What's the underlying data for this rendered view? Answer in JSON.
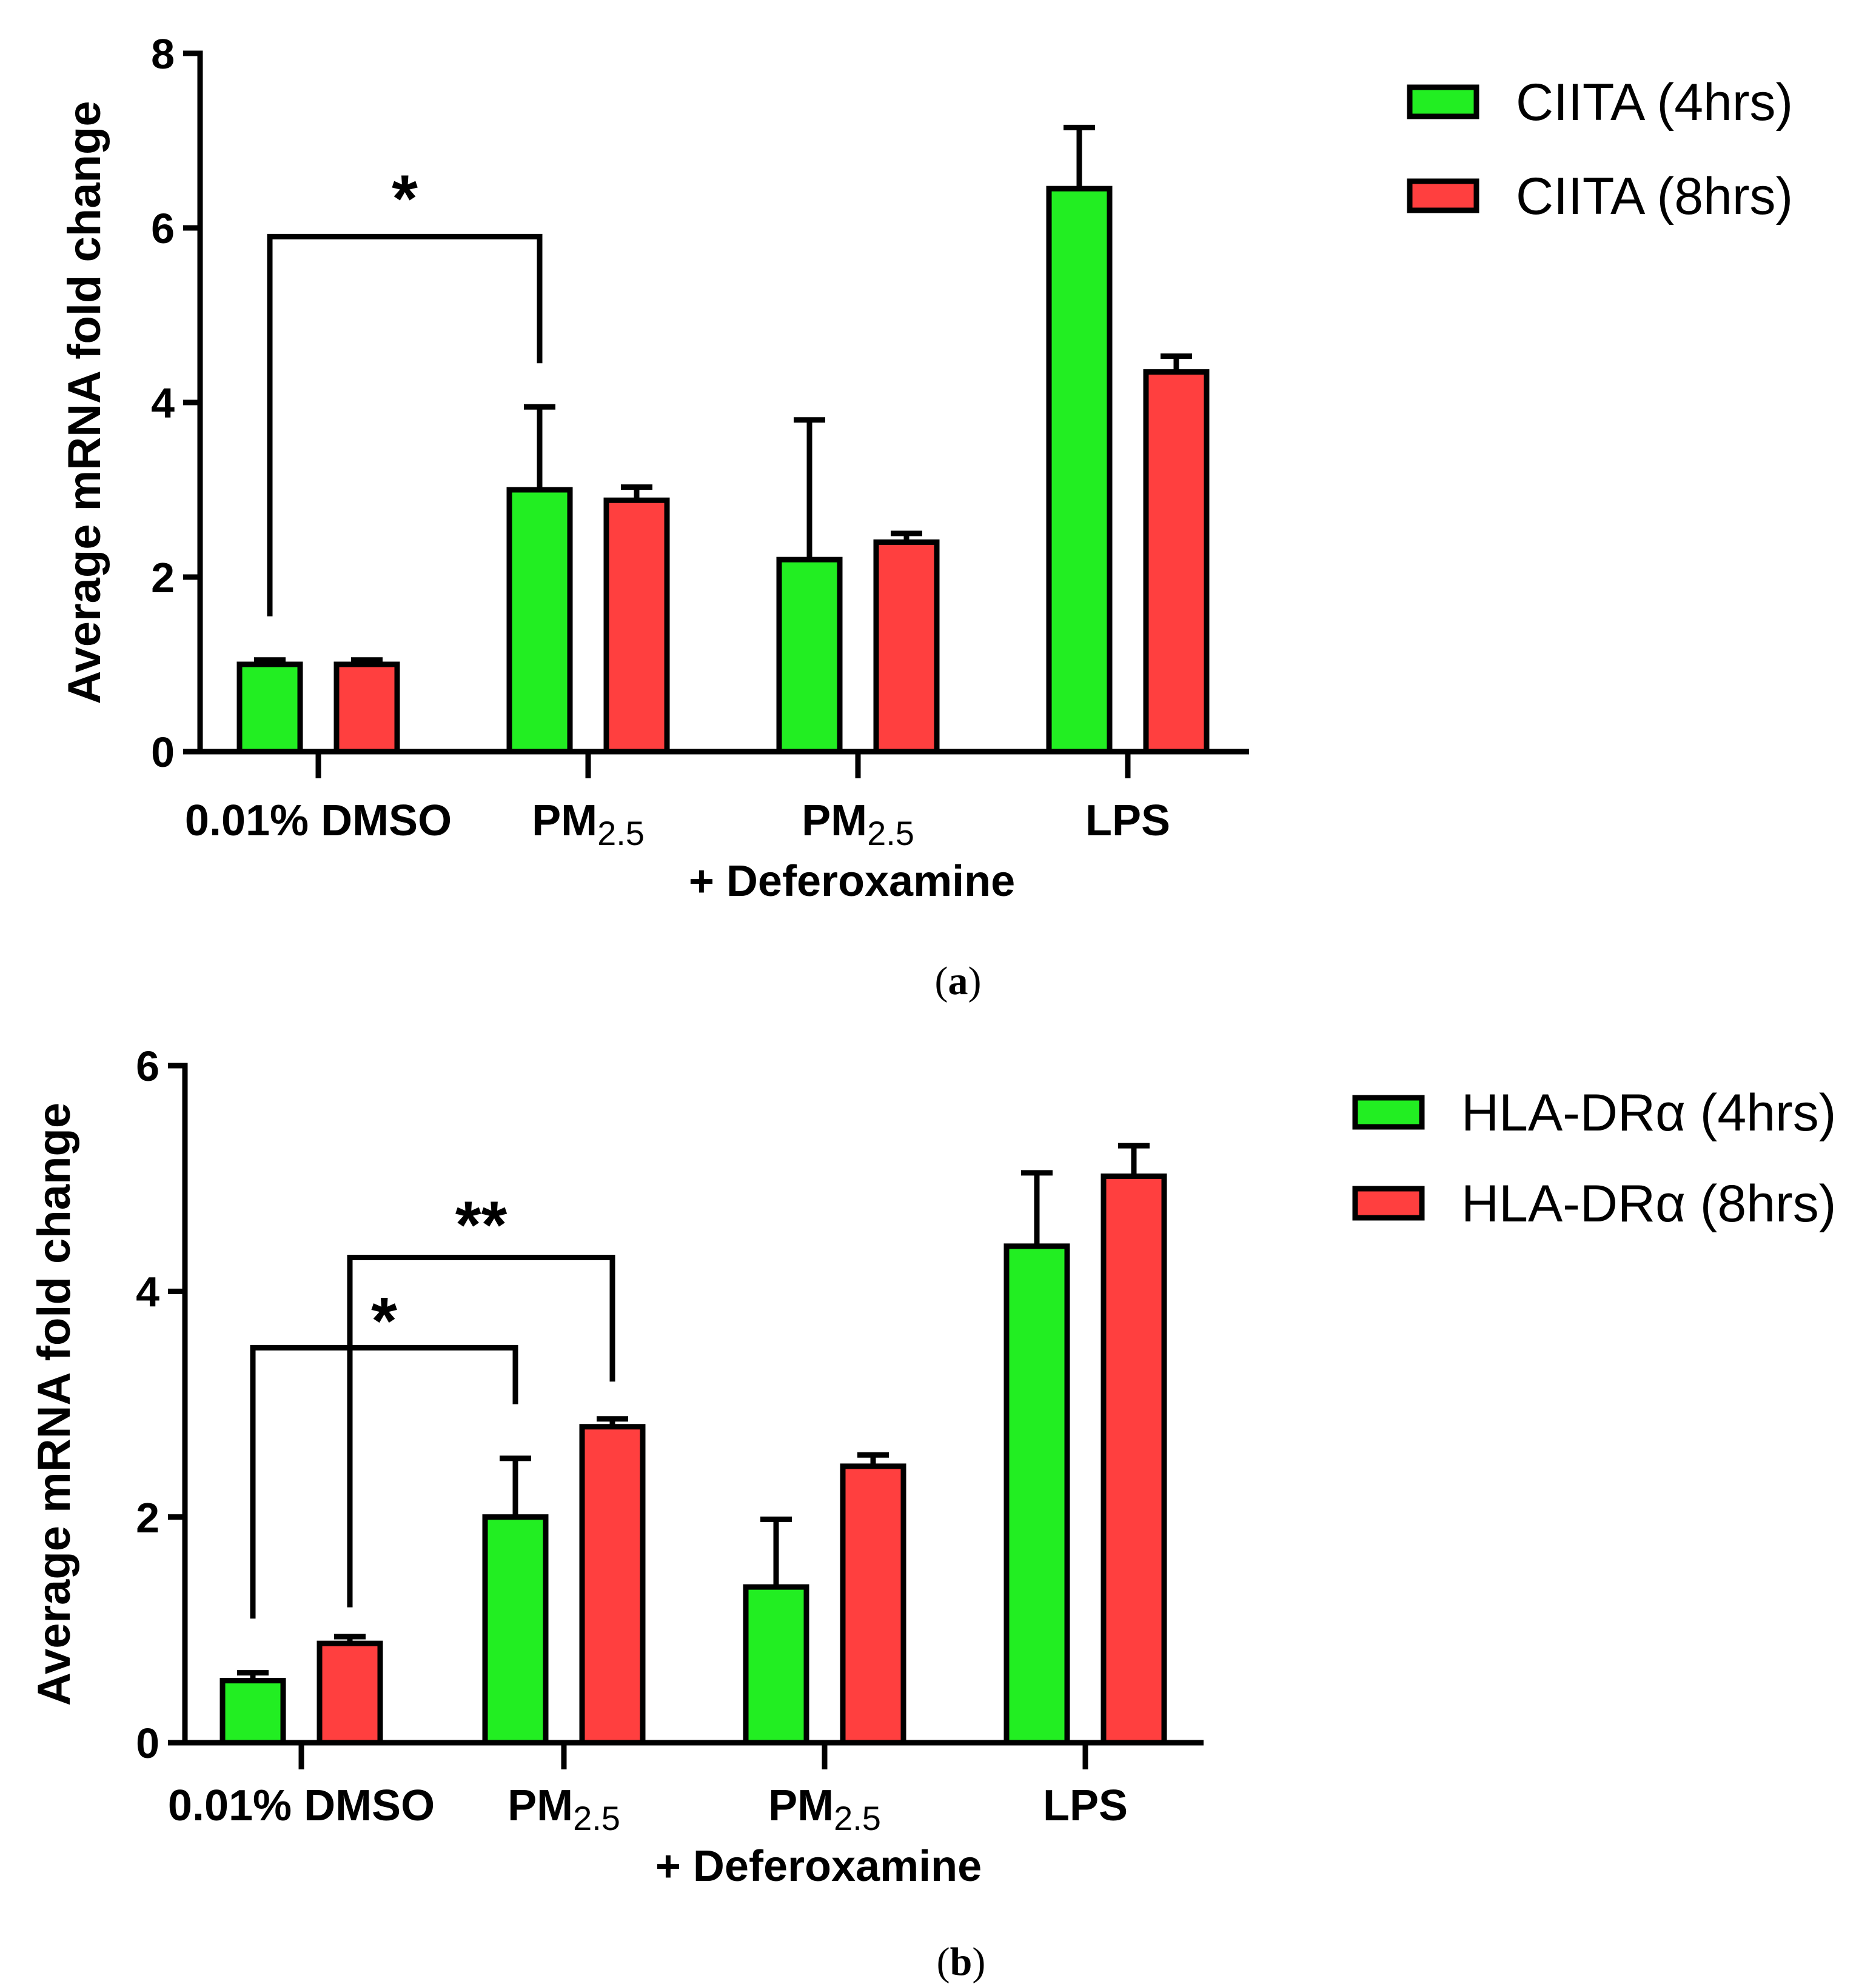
{
  "chart_data": [
    {
      "type": "bar",
      "panel_label": "(a)",
      "panel_label_parts": [
        "(",
        "a",
        ")"
      ],
      "categories": [
        "0.01% DMSO",
        "PM2.5",
        "PM2.5 + Deferoxamine",
        "LPS"
      ],
      "category_labels": [
        {
          "main": "0.01% DMSO",
          "sub": "",
          "line2": ""
        },
        {
          "main": "PM",
          "sub": "2.5",
          "line2": ""
        },
        {
          "main": "PM",
          "sub": "2.5",
          "line2": "+ Deferoxamine"
        },
        {
          "main": "LPS",
          "sub": "",
          "line2": ""
        }
      ],
      "ylabel": "Average mRNA fold change",
      "xlabel": "",
      "ylim": [
        0,
        8
      ],
      "yticks": [
        0,
        2,
        4,
        6,
        8
      ],
      "grid": false,
      "legend_position": "top-right",
      "series": [
        {
          "name": "CIITA (4hrs)",
          "color": "#22ee22",
          "values": [
            1.0,
            3.0,
            2.2,
            6.45
          ],
          "errors": [
            0.05,
            0.95,
            1.6,
            0.7
          ]
        },
        {
          "name": "CIITA (8hrs)",
          "color": "#ff3f3f",
          "values": [
            1.0,
            2.88,
            2.4,
            4.35
          ],
          "errors": [
            0.05,
            0.15,
            0.1,
            0.18
          ]
        }
      ],
      "significance": [
        {
          "label": "*",
          "from": {
            "category": 0,
            "series": 0,
            "y": 1.55
          },
          "to": {
            "category": 1,
            "series": 0,
            "y": 4.45
          },
          "bar_y": 5.9,
          "label_y": 6.35
        }
      ]
    },
    {
      "type": "bar",
      "panel_label": "(b)",
      "panel_label_parts": [
        "(",
        "b",
        ")"
      ],
      "categories": [
        "0.01% DMSO",
        "PM2.5",
        "PM2.5 + Deferoxamine",
        "LPS"
      ],
      "category_labels": [
        {
          "main": "0.01% DMSO",
          "sub": "",
          "line2": ""
        },
        {
          "main": "PM",
          "sub": "2.5",
          "line2": ""
        },
        {
          "main": "PM",
          "sub": "2.5",
          "line2": "+ Deferoxamine"
        },
        {
          "main": "LPS",
          "sub": "",
          "line2": ""
        }
      ],
      "ylabel": "Average mRNA fold change",
      "xlabel": "",
      "ylim": [
        0,
        6
      ],
      "yticks": [
        0,
        2,
        4,
        6
      ],
      "grid": false,
      "legend_position": "top-right",
      "series": [
        {
          "name": "HLA-DRα (4hrs)",
          "color": "#22ee22",
          "values": [
            0.55,
            2.0,
            1.38,
            4.4
          ],
          "errors": [
            0.07,
            0.52,
            0.6,
            0.65
          ]
        },
        {
          "name": "HLA-DRα (8hrs)",
          "color": "#ff3f3f",
          "values": [
            0.88,
            2.8,
            2.45,
            5.02
          ],
          "errors": [
            0.06,
            0.07,
            0.1,
            0.27
          ]
        }
      ],
      "significance": [
        {
          "label": "*",
          "from": {
            "category": 0,
            "series": 0,
            "y": 1.1
          },
          "to": {
            "category": 1,
            "series": 0,
            "y": 3.0
          },
          "bar_y": 3.5,
          "label_y": 3.75
        },
        {
          "label": "**",
          "from": {
            "category": 0,
            "series": 1,
            "y": 1.2
          },
          "to": {
            "category": 1,
            "series": 1,
            "y": 3.2
          },
          "bar_y": 4.3,
          "label_y": 4.6
        }
      ]
    }
  ]
}
